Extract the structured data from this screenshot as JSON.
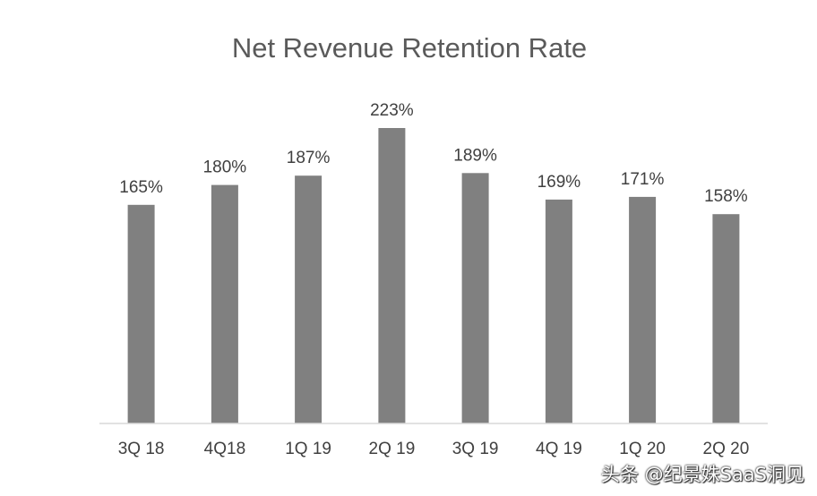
{
  "chart_data": {
    "type": "bar",
    "title": "Net Revenue Retention Rate",
    "categories": [
      "3Q 18",
      "4Q18",
      "1Q 19",
      "2Q 19",
      "3Q 19",
      "4Q 19",
      "1Q 20",
      "2Q 20"
    ],
    "values": [
      165,
      180,
      187,
      223,
      189,
      169,
      171,
      158
    ],
    "value_labels": [
      "165%",
      "180%",
      "187%",
      "223%",
      "189%",
      "169%",
      "171%",
      "158%"
    ],
    "xlabel": "",
    "ylabel": "",
    "ylim": [
      0,
      250
    ],
    "grid": false,
    "legend": "none",
    "bar_color": "#808080",
    "axis_color": "#d9d9d9"
  },
  "watermark": {
    "text": "头条 @纪景姝SaaS洞见"
  }
}
